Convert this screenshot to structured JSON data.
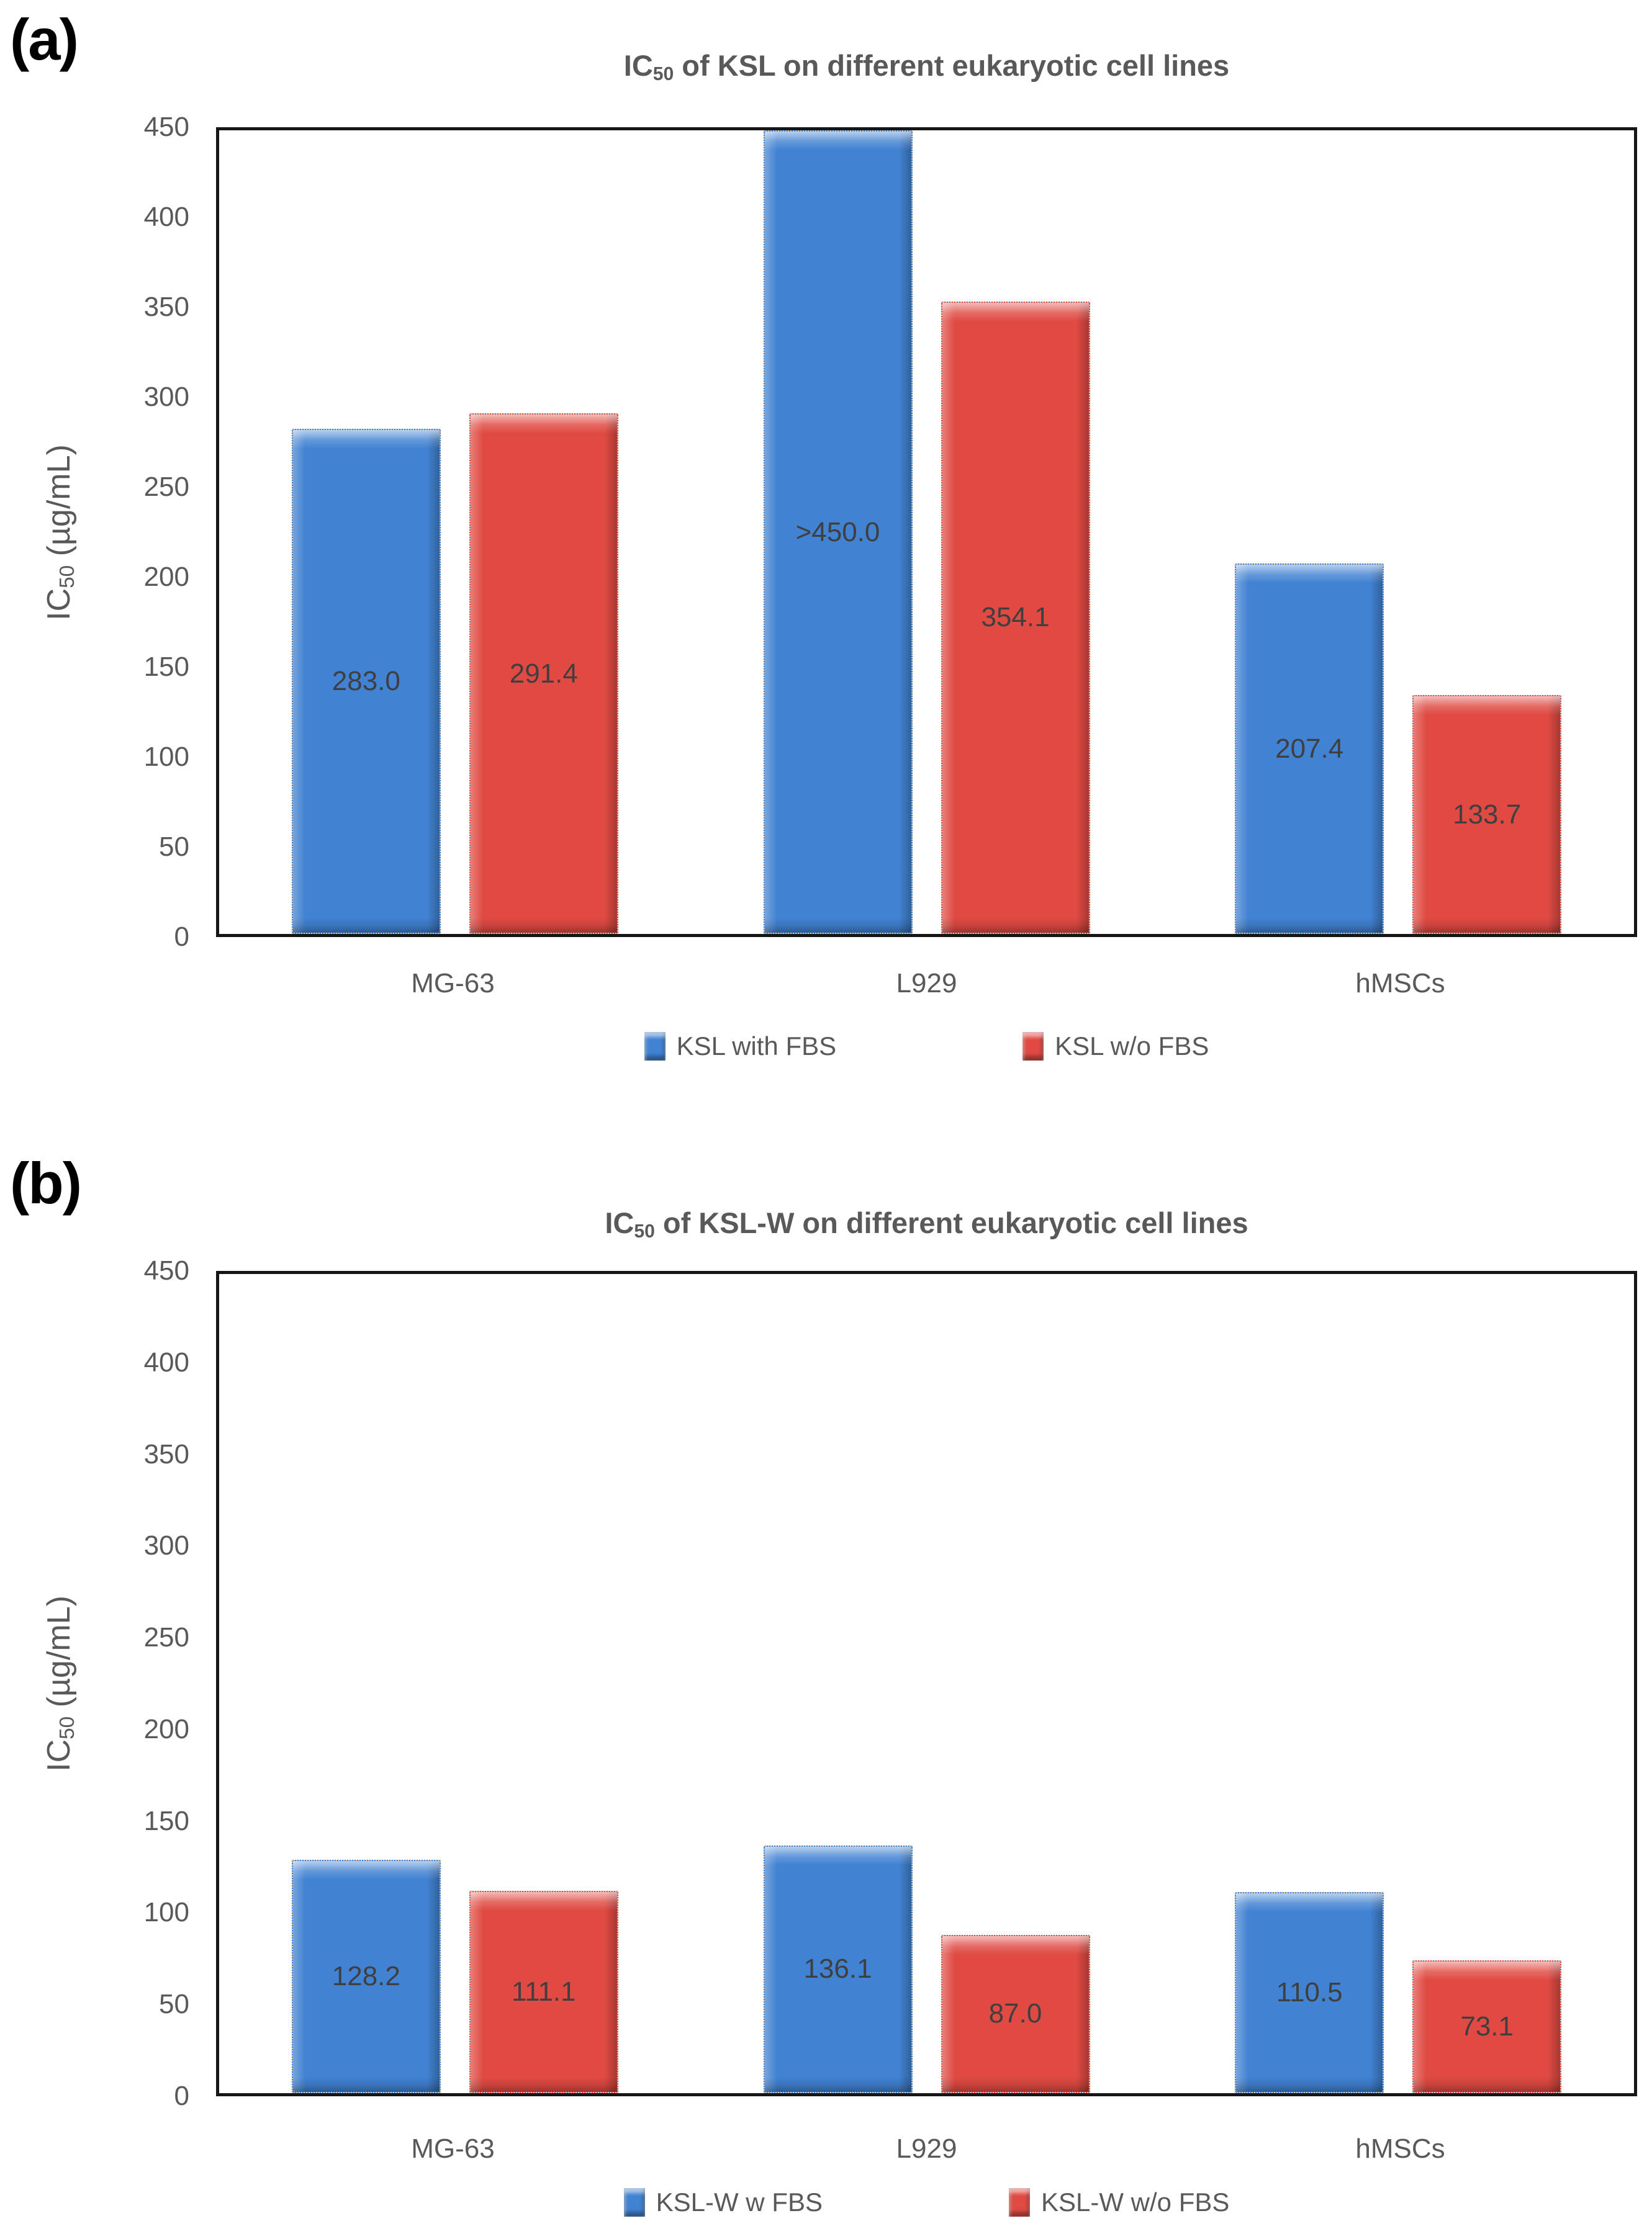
{
  "colors": {
    "series_blue": "#4182D2",
    "series_red": "#E04A43",
    "axis_text": "#595959",
    "bar_label_text": "#3F3F3F",
    "plot_border": "#161616",
    "panel_label_text": "#000000"
  },
  "chart_data": [
    {
      "type": "bar",
      "panel_label": "(a)",
      "title": "IC50 of KSL on different eukaryotic cell lines",
      "title_parts": {
        "prefix": "IC",
        "sub": "50",
        "rest": " of KSL on different eukaryotic cell lines"
      },
      "ylabel": "IC50 (µg/mL)",
      "ylabel_parts": {
        "prefix": "IC",
        "sub": "50",
        "rest": " (µg/mL)"
      },
      "xlabel": "",
      "ylim": [
        0,
        450
      ],
      "ytick_step": 50,
      "grid": false,
      "legend_position": "bottom",
      "categories": [
        "MG-63",
        "L929",
        "hMSCs"
      ],
      "series": [
        {
          "name": "KSL with FBS",
          "color": "#4182D2",
          "values": [
            283.0,
            450.0,
            207.4
          ],
          "value_labels": [
            "283.0",
            ">450.0",
            "207.4"
          ]
        },
        {
          "name": "KSL w/o FBS",
          "color": "#E04A43",
          "values": [
            291.4,
            354.1,
            133.7
          ],
          "value_labels": [
            "291.4",
            "354.1",
            "133.7"
          ]
        }
      ]
    },
    {
      "type": "bar",
      "panel_label": "(b)",
      "title": "IC50 of KSL-W on different eukaryotic cell lines",
      "title_parts": {
        "prefix": "IC",
        "sub": "50",
        "rest": " of KSL-W on different eukaryotic cell lines"
      },
      "ylabel": "IC50 (µg/mL)",
      "ylabel_parts": {
        "prefix": "IC",
        "sub": "50",
        "rest": " (µg/mL)"
      },
      "xlabel": "",
      "ylim": [
        0,
        450
      ],
      "ytick_step": 50,
      "grid": false,
      "legend_position": "bottom",
      "categories": [
        "MG-63",
        "L929",
        "hMSCs"
      ],
      "series": [
        {
          "name": "KSL-W w FBS",
          "color": "#4182D2",
          "values": [
            128.2,
            136.1,
            110.5
          ],
          "value_labels": [
            "128.2",
            "136.1",
            "110.5"
          ]
        },
        {
          "name": "KSL-W w/o FBS",
          "color": "#E04A43",
          "values": [
            111.1,
            87.0,
            73.1
          ],
          "value_labels": [
            "111.1",
            "87.0",
            "73.1"
          ]
        }
      ]
    }
  ]
}
